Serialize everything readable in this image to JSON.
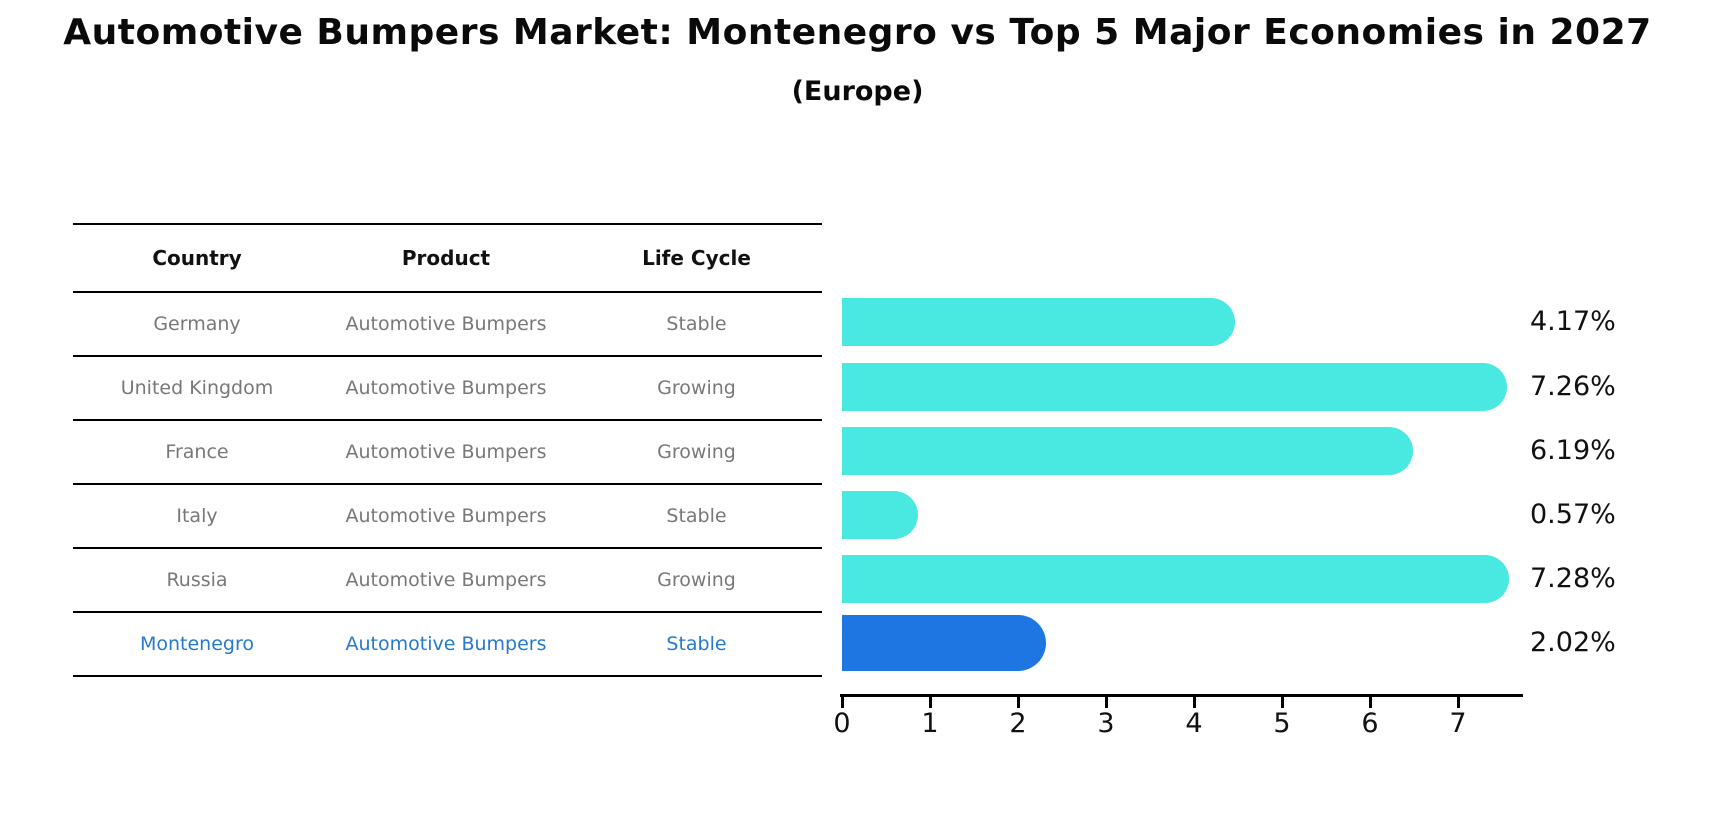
{
  "title": "Automotive Bumpers Market: Montenegro vs Top 5 Major Economies in 2027",
  "subtitle": "(Europe)",
  "colors": {
    "bar_cyan": "#49E8E1",
    "bar_highlight_blue": "#1D76E2",
    "highlight_text_blue": "#2679CE",
    "table_text_gray": "#787878",
    "line_black": "#000000"
  },
  "table": {
    "headers": [
      "Country",
      "Product",
      "Life Cycle"
    ],
    "rows": [
      {
        "country": "Germany",
        "product": "Automotive Bumpers",
        "life_cycle": "Stable"
      },
      {
        "country": "United Kingdom",
        "product": "Automotive Bumpers",
        "life_cycle": "Growing"
      },
      {
        "country": "France",
        "product": "Automotive Bumpers",
        "life_cycle": "Growing"
      },
      {
        "country": "Italy",
        "product": "Automotive Bumpers",
        "life_cycle": "Stable"
      },
      {
        "country": "Russia",
        "product": "Automotive Bumpers",
        "life_cycle": "Growing"
      },
      {
        "country": "Montenegro",
        "product": "Automotive Bumpers",
        "life_cycle": "Stable"
      }
    ]
  },
  "chart_data": {
    "type": "bar",
    "orientation": "horizontal",
    "title": "Automotive Bumpers Market: Montenegro vs Top 5 Major Economies in 2027",
    "subtitle": "(Europe)",
    "categories": [
      "Germany",
      "United Kingdom",
      "France",
      "Italy",
      "Russia",
      "Montenegro"
    ],
    "values": [
      4.17,
      7.26,
      6.19,
      0.57,
      7.28,
      2.02
    ],
    "labels": [
      "4.17%",
      "7.26%",
      "6.19%",
      "0.57%",
      "7.28%",
      "2.02%"
    ],
    "highlight_index": 5,
    "xticks": [
      "0",
      "1",
      "2",
      "3",
      "4",
      "5",
      "6",
      "7"
    ],
    "xlim": [
      0,
      7.73
    ],
    "xlabel": "",
    "ylabel": "",
    "grid": "off",
    "legend": "none"
  }
}
